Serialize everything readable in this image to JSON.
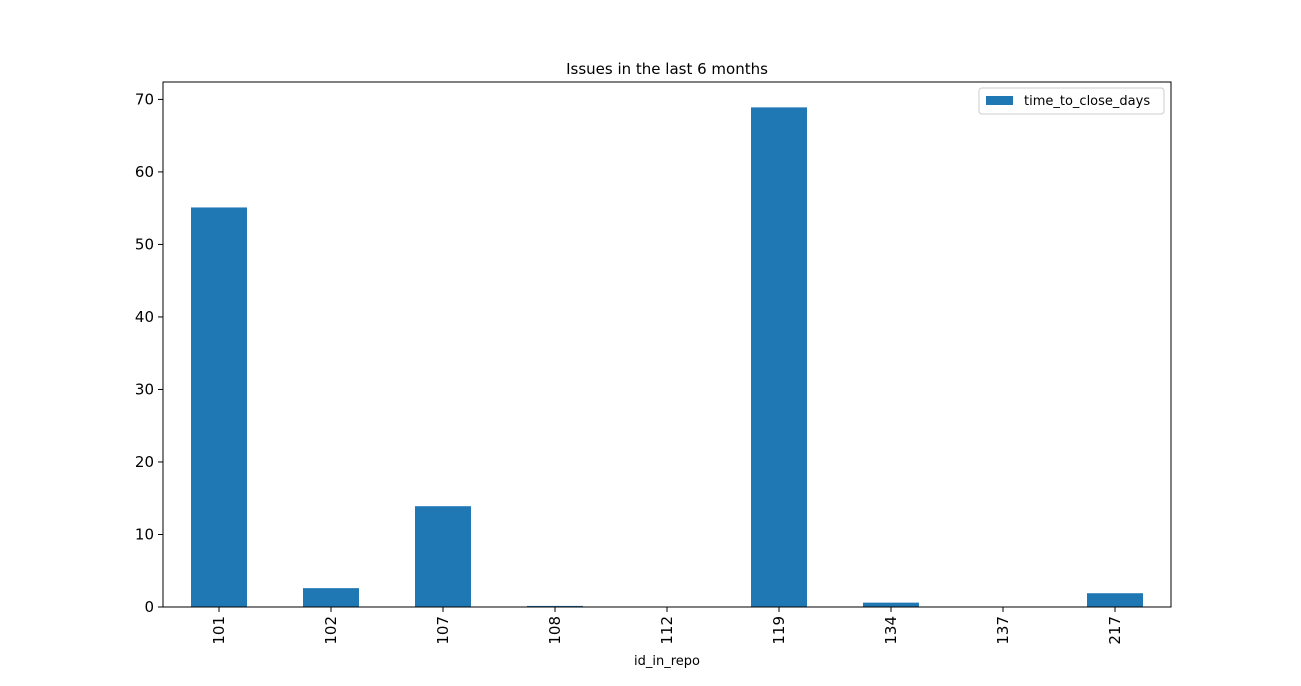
{
  "chart_data": {
    "type": "bar",
    "title": "Issues in the last 6 months",
    "xlabel": "id_in_repo",
    "ylabel": "",
    "categories": [
      "101",
      "102",
      "107",
      "108",
      "112",
      "119",
      "134",
      "137",
      "217"
    ],
    "series": [
      {
        "name": "time_to_close_days",
        "values": [
          55.1,
          2.6,
          13.9,
          0.15,
          0.0,
          68.9,
          0.6,
          0.0,
          1.9
        ],
        "color": "#1f77b4"
      }
    ],
    "ylim": [
      0,
      72.4
    ],
    "yticks": [
      0,
      10,
      20,
      30,
      40,
      50,
      60,
      70
    ],
    "grid": false,
    "legend_position": "top-right",
    "xtick_rotation": "vertical"
  }
}
